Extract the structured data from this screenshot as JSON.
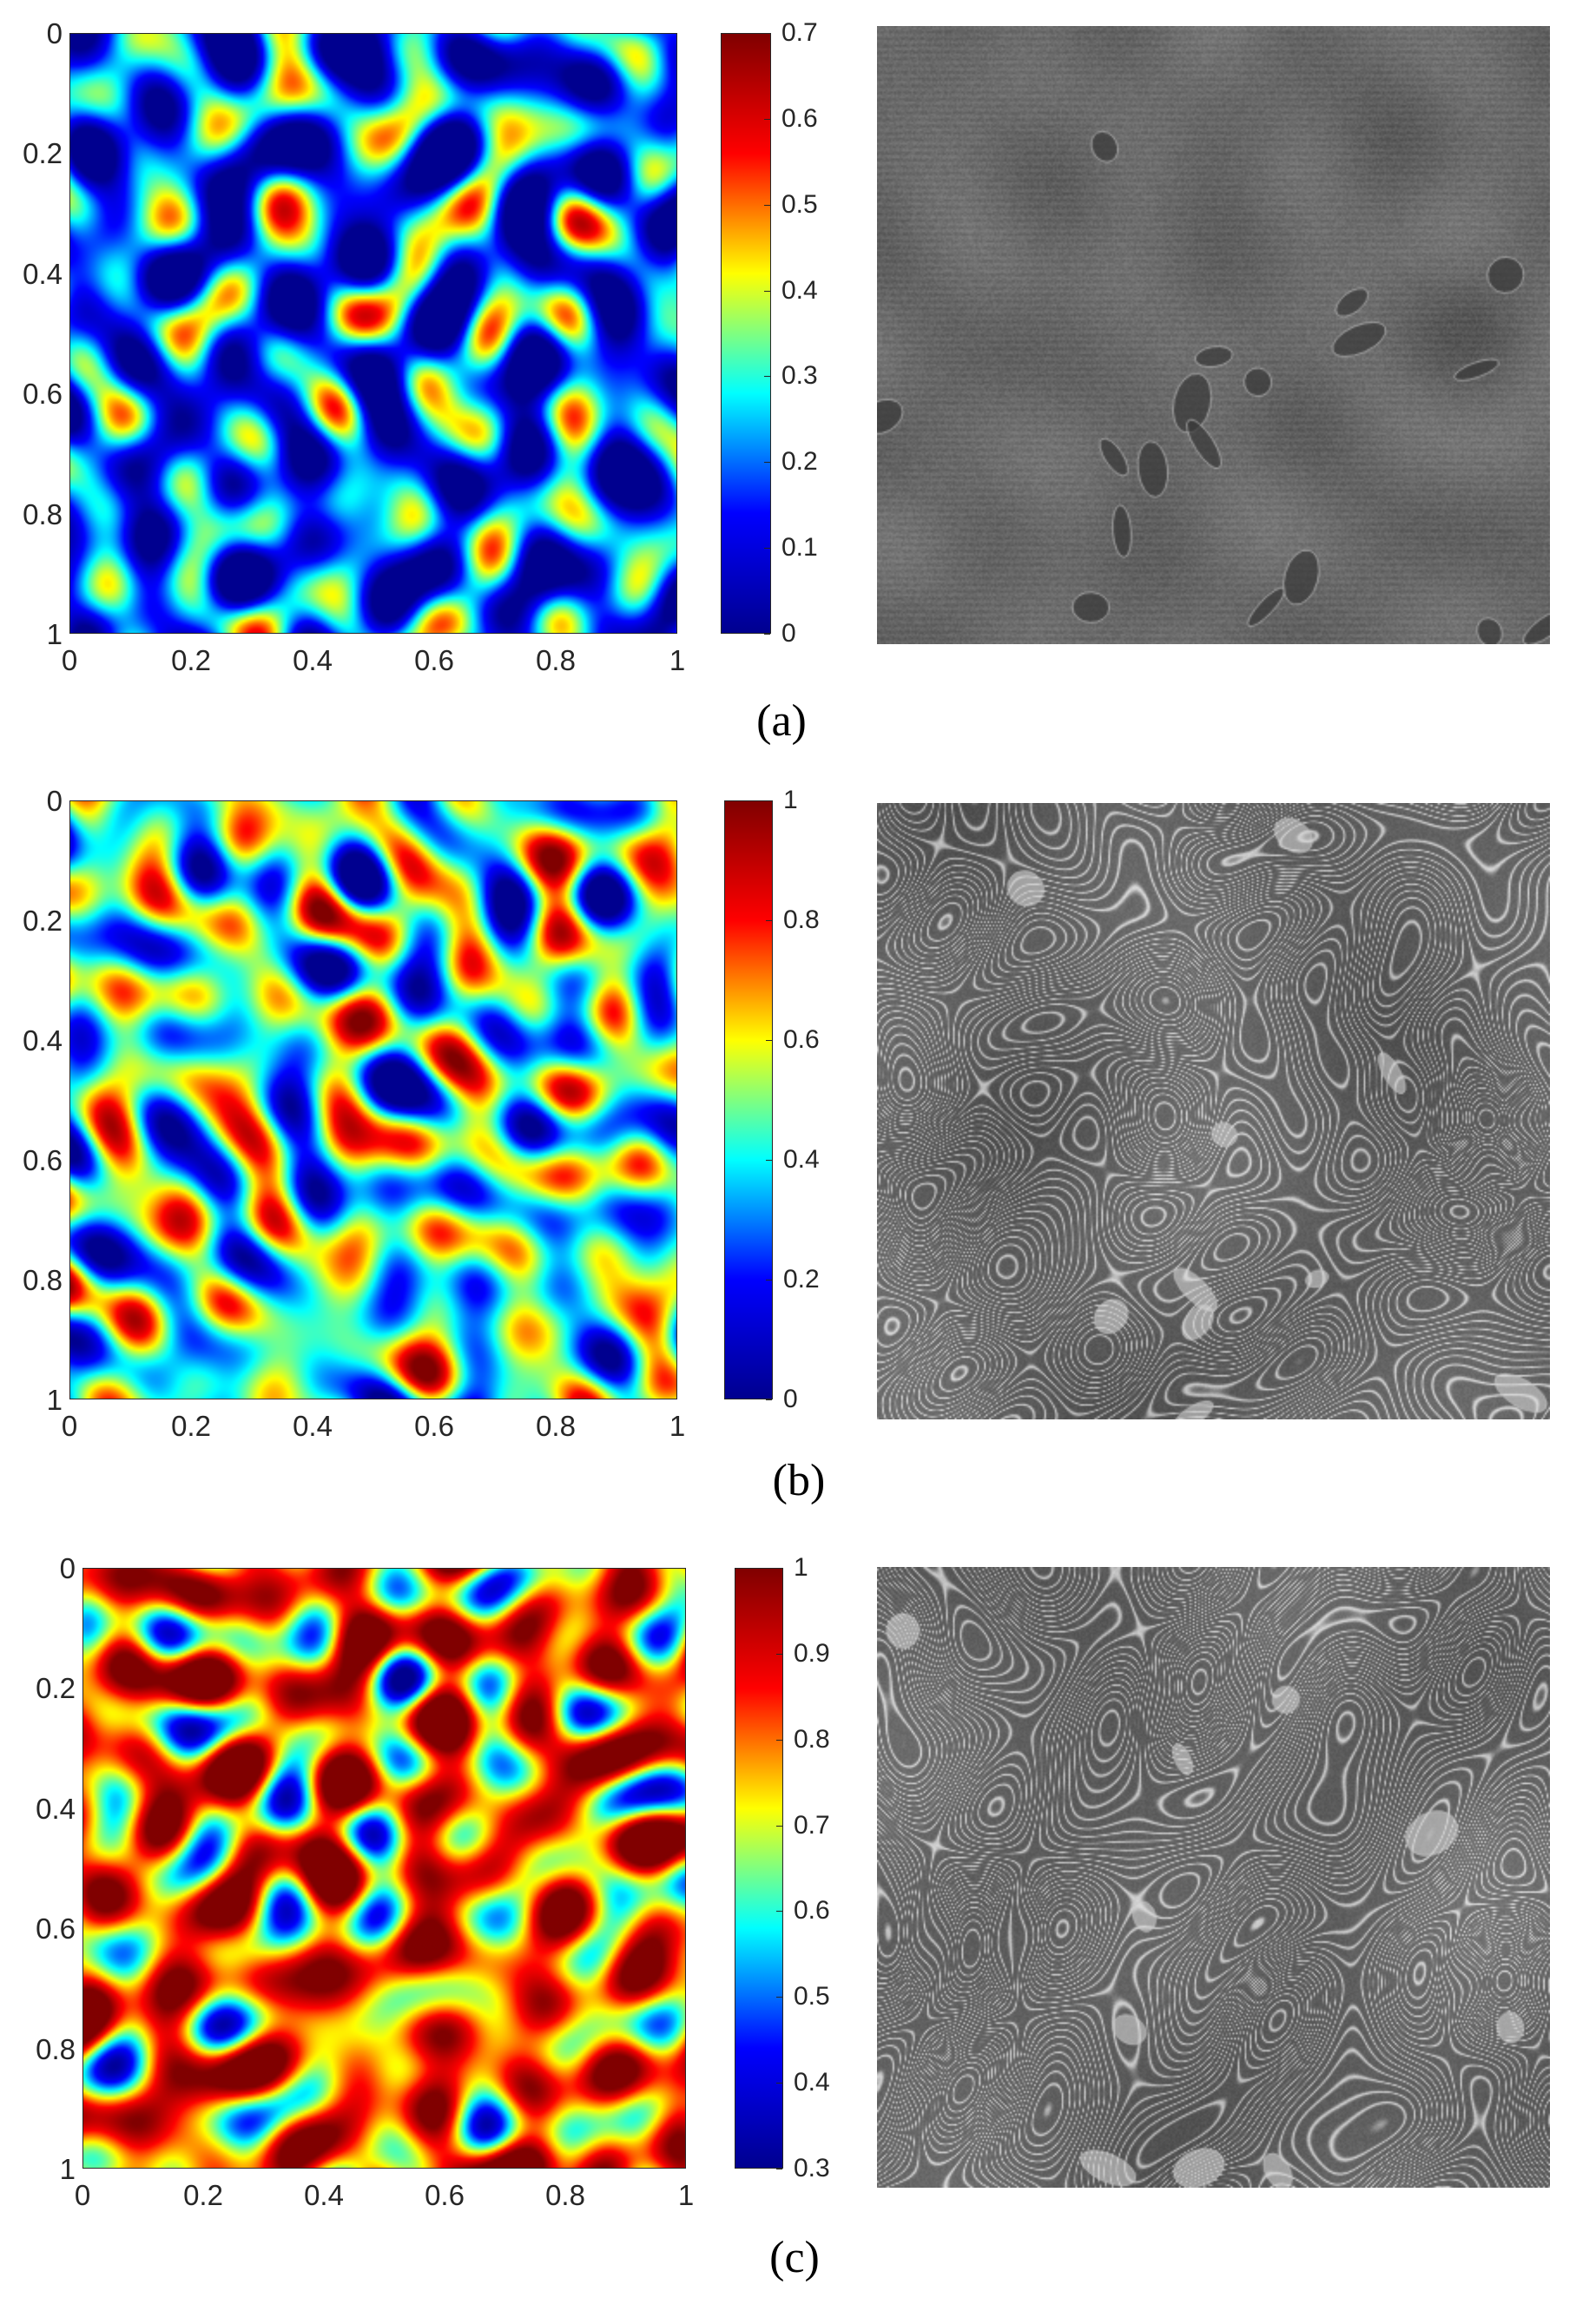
{
  "colormap": [
    "#00008f",
    "#0000ff",
    "#00ffff",
    "#ffff00",
    "#ff0000",
    "#800000"
  ],
  "panels": [
    {
      "caption": "(a)",
      "x_ticks": [
        "0",
        "0.2",
        "0.4",
        "0.6",
        "0.8",
        "1"
      ],
      "y_ticks": [
        "0",
        "0.2",
        "0.4",
        "0.6",
        "0.8",
        "1"
      ],
      "colorbar": {
        "min": 0,
        "max": 0.7,
        "ticks": [
          "0",
          "0.1",
          "0.2",
          "0.3",
          "0.4",
          "0.5",
          "0.6",
          "0.7"
        ]
      },
      "heatmap_bias": 0.25,
      "sem_style": "pitted"
    },
    {
      "caption": "(b)",
      "x_ticks": [
        "0",
        "0.2",
        "0.4",
        "0.6",
        "0.8",
        "1"
      ],
      "y_ticks": [
        "0",
        "0.2",
        "0.4",
        "0.6",
        "0.8",
        "1"
      ],
      "colorbar": {
        "min": 0,
        "max": 1,
        "ticks": [
          "0",
          "0.2",
          "0.4",
          "0.6",
          "0.8",
          "1"
        ]
      },
      "heatmap_bias": 0.45,
      "sem_style": "swirl"
    },
    {
      "caption": "(c)",
      "x_ticks": [
        "0",
        "0.2",
        "0.4",
        "0.6",
        "0.8",
        "1"
      ],
      "y_ticks": [
        "0",
        "0.2",
        "0.4",
        "0.6",
        "0.8",
        "1"
      ],
      "colorbar": {
        "min": 0.3,
        "max": 1,
        "ticks": [
          "0.3",
          "0.4",
          "0.5",
          "0.6",
          "0.7",
          "0.8",
          "0.9",
          "1"
        ]
      },
      "heatmap_bias": 0.72,
      "sem_style": "swirl"
    }
  ],
  "chart_data": [
    {
      "type": "heatmap",
      "title": "",
      "xlabel": "",
      "ylabel": "",
      "xlim": [
        0,
        1
      ],
      "ylim": [
        0,
        1
      ],
      "colorbar_range": [
        0,
        0.7
      ],
      "colormap": "jet",
      "y_axis_reversed": true
    },
    {
      "type": "heatmap",
      "title": "",
      "xlabel": "",
      "ylabel": "",
      "xlim": [
        0,
        1
      ],
      "ylim": [
        0,
        1
      ],
      "colorbar_range": [
        0,
        1
      ],
      "colormap": "jet",
      "y_axis_reversed": true
    },
    {
      "type": "heatmap",
      "title": "",
      "xlabel": "",
      "ylabel": "",
      "xlim": [
        0,
        1
      ],
      "ylim": [
        0,
        1
      ],
      "colorbar_range": [
        0.3,
        1
      ],
      "colormap": "jet",
      "y_axis_reversed": true
    }
  ]
}
